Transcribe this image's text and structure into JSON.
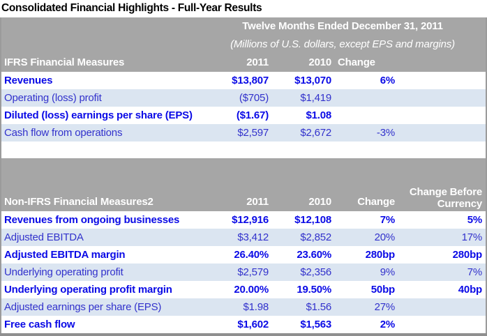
{
  "title": "Consolidated Financial Highlights - Full-Year Results",
  "colors": {
    "header_bg": "#a6a6a6",
    "stripe_bg": "#dbe5f1",
    "bold_text_blue": "#0a0ae6",
    "regular_text_blue": "#3232cc",
    "border_gray": "#9b9b9b",
    "bottom_bar_gray": "#8f8f8f"
  },
  "table1": {
    "period_line": "Twelve Months Ended December 31, 2011",
    "subtitle_line": "(Millions of U.S. dollars, except EPS and margins)",
    "section_label": "IFRS Financial Measures",
    "columns": {
      "y2011": "2011",
      "y2010": "2010",
      "change": "Change"
    },
    "rows": [
      {
        "label": "Revenues",
        "y2011": "$13,807",
        "y2010": "$13,070",
        "change": "6%"
      },
      {
        "label": "Operating (loss) profit",
        "y2011": "($705)",
        "y2010": "$1,419",
        "change": ""
      },
      {
        "label": "Diluted (loss) earnings per share (EPS)",
        "y2011": "($1.67)",
        "y2010": "$1.08",
        "change": ""
      },
      {
        "label": "Cash flow from operations",
        "y2011": "$2,597",
        "y2010": "$2,672",
        "change": "-3%"
      }
    ]
  },
  "table2": {
    "section_label": "Non-IFRS Financial Measures2",
    "columns": {
      "y2011": "2011",
      "y2010": "2010",
      "change": "Change",
      "change_before_currency": "Change Before Currency"
    },
    "rows": [
      {
        "label": "Revenues from ongoing businesses",
        "y2011": "$12,916",
        "y2010": "$12,108",
        "change": "7%",
        "cbc": "5%"
      },
      {
        "label": "Adjusted EBITDA",
        "y2011": "$3,412",
        "y2010": "$2,852",
        "change": "20%",
        "cbc": "17%"
      },
      {
        "label": "Adjusted EBITDA margin",
        "y2011": "26.40%",
        "y2010": "23.60%",
        "change": "280bp",
        "cbc": "280bp"
      },
      {
        "label": "Underlying operating profit",
        "y2011": "$2,579",
        "y2010": "$2,356",
        "change": "9%",
        "cbc": "7%"
      },
      {
        "label": "Underlying operating profit margin",
        "y2011": "20.00%",
        "y2010": "19.50%",
        "change": "50bp",
        "cbc": "40bp"
      },
      {
        "label": "Adjusted earnings per share (EPS)",
        "y2011": "$1.98",
        "y2010": "$1.56",
        "change": "27%",
        "cbc": ""
      },
      {
        "label": "Free cash flow",
        "y2011": "$1,602",
        "y2010": "$1,563",
        "change": "2%",
        "cbc": ""
      }
    ]
  }
}
